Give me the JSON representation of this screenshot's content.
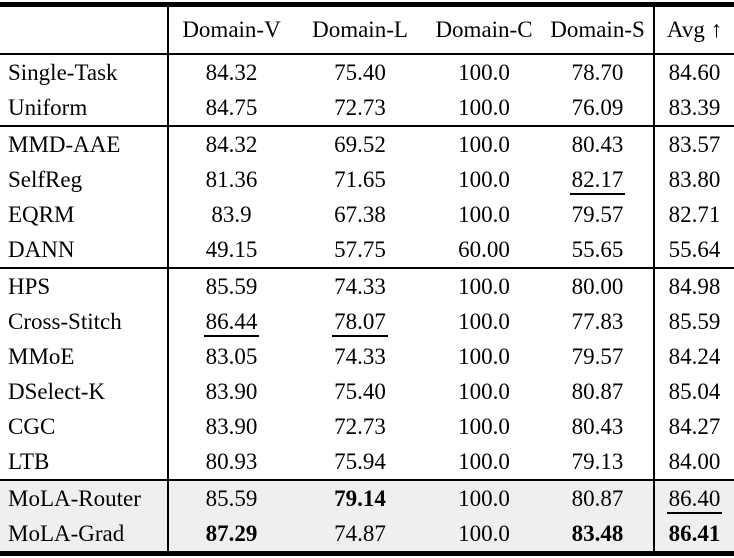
{
  "colors": {
    "rule_color": "#000000",
    "text_color": "#000000",
    "highlight_row_bg": "#efefef"
  },
  "table": {
    "columns": [
      "",
      "Domain-V",
      "Domain-L",
      "Domain-C",
      "Domain-S",
      "Avg ↑"
    ],
    "groups": [
      {
        "name": "single-task-baselines",
        "shaded": false,
        "rows": [
          {
            "label": "Single-Task",
            "values": [
              {
                "text": "84.32"
              },
              {
                "text": "75.40"
              },
              {
                "text": "100.0"
              },
              {
                "text": "78.70"
              },
              {
                "text": "84.60"
              }
            ]
          },
          {
            "label": "Uniform",
            "values": [
              {
                "text": "84.75"
              },
              {
                "text": "72.73"
              },
              {
                "text": "100.0"
              },
              {
                "text": "76.09"
              },
              {
                "text": "83.39"
              }
            ]
          }
        ]
      },
      {
        "name": "domain-generalization-methods",
        "shaded": false,
        "rows": [
          {
            "label": "MMD-AAE",
            "values": [
              {
                "text": "84.32"
              },
              {
                "text": "69.52"
              },
              {
                "text": "100.0"
              },
              {
                "text": "80.43"
              },
              {
                "text": "83.57"
              }
            ]
          },
          {
            "label": "SelfReg",
            "values": [
              {
                "text": "81.36"
              },
              {
                "text": "71.65"
              },
              {
                "text": "100.0"
              },
              {
                "text": "82.17",
                "underline": true
              },
              {
                "text": "83.80"
              }
            ]
          },
          {
            "label": "EQRM",
            "values": [
              {
                "text": "83.9"
              },
              {
                "text": "67.38"
              },
              {
                "text": "100.0"
              },
              {
                "text": "79.57"
              },
              {
                "text": "82.71"
              }
            ]
          },
          {
            "label": "DANN",
            "values": [
              {
                "text": "49.15"
              },
              {
                "text": "57.75"
              },
              {
                "text": "60.00"
              },
              {
                "text": "55.65"
              },
              {
                "text": "55.64"
              }
            ]
          }
        ]
      },
      {
        "name": "multi-task-methods",
        "shaded": false,
        "rows": [
          {
            "label": "HPS",
            "values": [
              {
                "text": "85.59"
              },
              {
                "text": "74.33"
              },
              {
                "text": "100.0"
              },
              {
                "text": "80.00"
              },
              {
                "text": "84.98"
              }
            ]
          },
          {
            "label": "Cross-Stitch",
            "values": [
              {
                "text": "86.44",
                "underline": true
              },
              {
                "text": "78.07",
                "underline": true
              },
              {
                "text": "100.0"
              },
              {
                "text": "77.83"
              },
              {
                "text": "85.59"
              }
            ]
          },
          {
            "label": "MMoE",
            "values": [
              {
                "text": "83.05"
              },
              {
                "text": "74.33"
              },
              {
                "text": "100.0"
              },
              {
                "text": "79.57"
              },
              {
                "text": "84.24"
              }
            ]
          },
          {
            "label": "DSelect-K",
            "values": [
              {
                "text": "83.90"
              },
              {
                "text": "75.40"
              },
              {
                "text": "100.0"
              },
              {
                "text": "80.87"
              },
              {
                "text": "85.04"
              }
            ]
          },
          {
            "label": "CGC",
            "values": [
              {
                "text": "83.90"
              },
              {
                "text": "72.73"
              },
              {
                "text": "100.0"
              },
              {
                "text": "80.43"
              },
              {
                "text": "84.27"
              }
            ]
          },
          {
            "label": "LTB",
            "values": [
              {
                "text": "80.93"
              },
              {
                "text": "75.94"
              },
              {
                "text": "100.0"
              },
              {
                "text": "79.13"
              },
              {
                "text": "84.00"
              }
            ]
          }
        ]
      },
      {
        "name": "mola-methods",
        "shaded": true,
        "rows": [
          {
            "label": "MoLA-Router",
            "values": [
              {
                "text": "85.59"
              },
              {
                "text": "79.14",
                "bold": true
              },
              {
                "text": "100.0"
              },
              {
                "text": "80.87"
              },
              {
                "text": "86.40",
                "underline": true
              }
            ]
          },
          {
            "label": "MoLA-Grad",
            "values": [
              {
                "text": "87.29",
                "bold": true
              },
              {
                "text": "74.87"
              },
              {
                "text": "100.0"
              },
              {
                "text": "83.48",
                "bold": true
              },
              {
                "text": "86.41",
                "bold": true
              }
            ]
          }
        ]
      }
    ]
  }
}
